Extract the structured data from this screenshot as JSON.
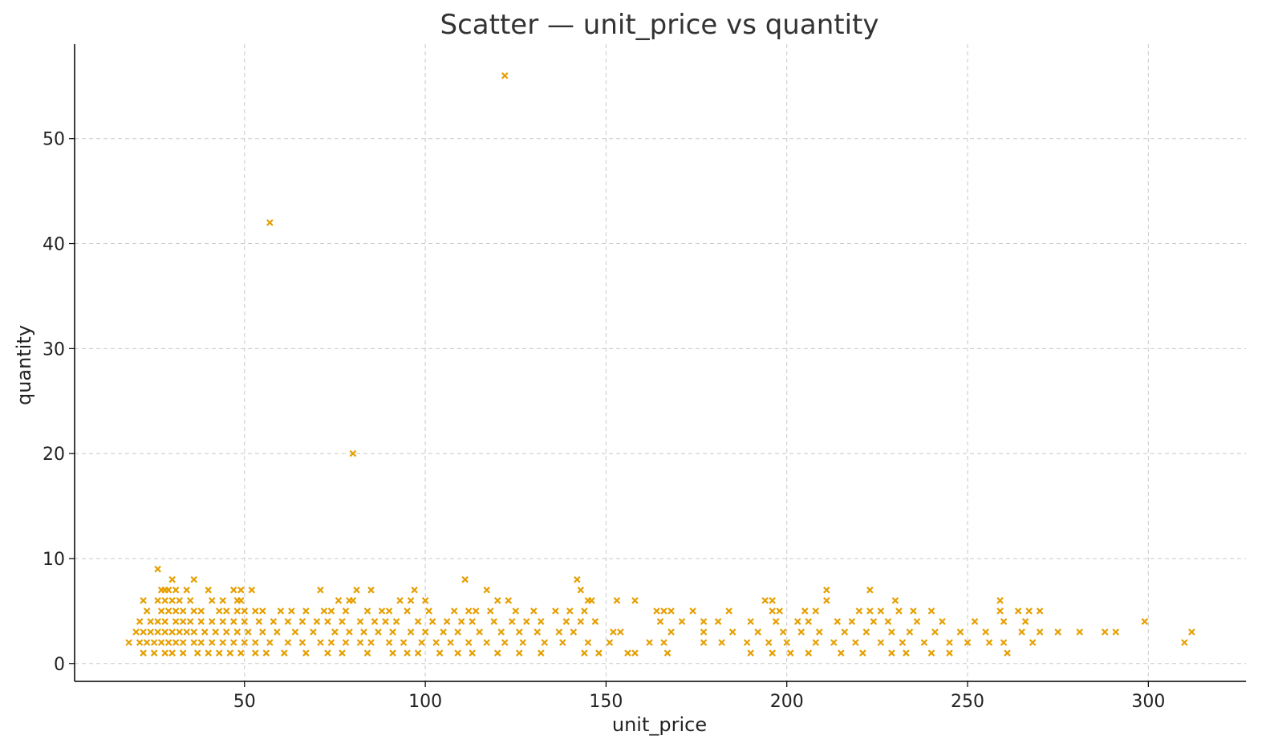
{
  "chart_data": {
    "type": "scatter",
    "title": "Scatter — unit_price vs quantity",
    "xlabel": "unit_price",
    "ylabel": "quantity",
    "xlim": [
      3,
      327
    ],
    "ylim": [
      -1.7,
      59
    ],
    "xticks": [
      50,
      100,
      150,
      200,
      250,
      300
    ],
    "yticks": [
      0,
      10,
      20,
      30,
      40,
      50
    ],
    "grid": true,
    "marker": "x",
    "color": "#E69F00",
    "points": [
      [
        122,
        56
      ],
      [
        57,
        42
      ],
      [
        80,
        20
      ],
      [
        26,
        9
      ],
      [
        30,
        8
      ],
      [
        36,
        8
      ],
      [
        111,
        8
      ],
      [
        142,
        8
      ],
      [
        27,
        7
      ],
      [
        28,
        7
      ],
      [
        29,
        7
      ],
      [
        31,
        7
      ],
      [
        34,
        7
      ],
      [
        40,
        7
      ],
      [
        47,
        7
      ],
      [
        49,
        7
      ],
      [
        52,
        7
      ],
      [
        71,
        7
      ],
      [
        81,
        7
      ],
      [
        85,
        7
      ],
      [
        97,
        7
      ],
      [
        117,
        7
      ],
      [
        143,
        7
      ],
      [
        211,
        7
      ],
      [
        223,
        7
      ],
      [
        22,
        6
      ],
      [
        26,
        6
      ],
      [
        28,
        6
      ],
      [
        30,
        6
      ],
      [
        32,
        6
      ],
      [
        35,
        6
      ],
      [
        41,
        6
      ],
      [
        44,
        6
      ],
      [
        48,
        6
      ],
      [
        49,
        6
      ],
      [
        76,
        6
      ],
      [
        79,
        6
      ],
      [
        80,
        6
      ],
      [
        93,
        6
      ],
      [
        96,
        6
      ],
      [
        100,
        6
      ],
      [
        120,
        6
      ],
      [
        123,
        6
      ],
      [
        145,
        6
      ],
      [
        146,
        6
      ],
      [
        153,
        6
      ],
      [
        158,
        6
      ],
      [
        194,
        6
      ],
      [
        196,
        6
      ],
      [
        211,
        6
      ],
      [
        230,
        6
      ],
      [
        259,
        6
      ],
      [
        23,
        5
      ],
      [
        27,
        5
      ],
      [
        29,
        5
      ],
      [
        31,
        5
      ],
      [
        33,
        5
      ],
      [
        36,
        5
      ],
      [
        38,
        5
      ],
      [
        43,
        5
      ],
      [
        45,
        5
      ],
      [
        48,
        5
      ],
      [
        50,
        5
      ],
      [
        53,
        5
      ],
      [
        55,
        5
      ],
      [
        60,
        5
      ],
      [
        63,
        5
      ],
      [
        67,
        5
      ],
      [
        72,
        5
      ],
      [
        74,
        5
      ],
      [
        78,
        5
      ],
      [
        84,
        5
      ],
      [
        88,
        5
      ],
      [
        90,
        5
      ],
      [
        95,
        5
      ],
      [
        101,
        5
      ],
      [
        108,
        5
      ],
      [
        112,
        5
      ],
      [
        114,
        5
      ],
      [
        118,
        5
      ],
      [
        125,
        5
      ],
      [
        130,
        5
      ],
      [
        136,
        5
      ],
      [
        140,
        5
      ],
      [
        144,
        5
      ],
      [
        164,
        5
      ],
      [
        166,
        5
      ],
      [
        168,
        5
      ],
      [
        174,
        5
      ],
      [
        184,
        5
      ],
      [
        196,
        5
      ],
      [
        198,
        5
      ],
      [
        205,
        5
      ],
      [
        208,
        5
      ],
      [
        220,
        5
      ],
      [
        223,
        5
      ],
      [
        226,
        5
      ],
      [
        231,
        5
      ],
      [
        235,
        5
      ],
      [
        240,
        5
      ],
      [
        259,
        5
      ],
      [
        264,
        5
      ],
      [
        267,
        5
      ],
      [
        270,
        5
      ],
      [
        21,
        4
      ],
      [
        24,
        4
      ],
      [
        26,
        4
      ],
      [
        28,
        4
      ],
      [
        31,
        4
      ],
      [
        33,
        4
      ],
      [
        35,
        4
      ],
      [
        38,
        4
      ],
      [
        41,
        4
      ],
      [
        44,
        4
      ],
      [
        47,
        4
      ],
      [
        50,
        4
      ],
      [
        54,
        4
      ],
      [
        58,
        4
      ],
      [
        62,
        4
      ],
      [
        66,
        4
      ],
      [
        70,
        4
      ],
      [
        73,
        4
      ],
      [
        77,
        4
      ],
      [
        82,
        4
      ],
      [
        86,
        4
      ],
      [
        89,
        4
      ],
      [
        92,
        4
      ],
      [
        98,
        4
      ],
      [
        102,
        4
      ],
      [
        106,
        4
      ],
      [
        110,
        4
      ],
      [
        113,
        4
      ],
      [
        119,
        4
      ],
      [
        124,
        4
      ],
      [
        128,
        4
      ],
      [
        132,
        4
      ],
      [
        139,
        4
      ],
      [
        143,
        4
      ],
      [
        147,
        4
      ],
      [
        165,
        4
      ],
      [
        171,
        4
      ],
      [
        177,
        4
      ],
      [
        181,
        4
      ],
      [
        190,
        4
      ],
      [
        197,
        4
      ],
      [
        203,
        4
      ],
      [
        206,
        4
      ],
      [
        214,
        4
      ],
      [
        218,
        4
      ],
      [
        224,
        4
      ],
      [
        228,
        4
      ],
      [
        236,
        4
      ],
      [
        243,
        4
      ],
      [
        252,
        4
      ],
      [
        260,
        4
      ],
      [
        266,
        4
      ],
      [
        299,
        4
      ],
      [
        20,
        3
      ],
      [
        22,
        3
      ],
      [
        24,
        3
      ],
      [
        26,
        3
      ],
      [
        28,
        3
      ],
      [
        30,
        3
      ],
      [
        32,
        3
      ],
      [
        34,
        3
      ],
      [
        36,
        3
      ],
      [
        39,
        3
      ],
      [
        42,
        3
      ],
      [
        45,
        3
      ],
      [
        48,
        3
      ],
      [
        51,
        3
      ],
      [
        55,
        3
      ],
      [
        59,
        3
      ],
      [
        64,
        3
      ],
      [
        69,
        3
      ],
      [
        75,
        3
      ],
      [
        79,
        3
      ],
      [
        83,
        3
      ],
      [
        87,
        3
      ],
      [
        91,
        3
      ],
      [
        96,
        3
      ],
      [
        100,
        3
      ],
      [
        105,
        3
      ],
      [
        109,
        3
      ],
      [
        115,
        3
      ],
      [
        121,
        3
      ],
      [
        126,
        3
      ],
      [
        131,
        3
      ],
      [
        137,
        3
      ],
      [
        141,
        3
      ],
      [
        152,
        3
      ],
      [
        154,
        3
      ],
      [
        168,
        3
      ],
      [
        177,
        3
      ],
      [
        185,
        3
      ],
      [
        192,
        3
      ],
      [
        199,
        3
      ],
      [
        204,
        3
      ],
      [
        209,
        3
      ],
      [
        216,
        3
      ],
      [
        222,
        3
      ],
      [
        229,
        3
      ],
      [
        234,
        3
      ],
      [
        241,
        3
      ],
      [
        248,
        3
      ],
      [
        255,
        3
      ],
      [
        265,
        3
      ],
      [
        270,
        3
      ],
      [
        275,
        3
      ],
      [
        281,
        3
      ],
      [
        288,
        3
      ],
      [
        291,
        3
      ],
      [
        312,
        3
      ],
      [
        18,
        2
      ],
      [
        21,
        2
      ],
      [
        23,
        2
      ],
      [
        25,
        2
      ],
      [
        27,
        2
      ],
      [
        29,
        2
      ],
      [
        31,
        2
      ],
      [
        33,
        2
      ],
      [
        36,
        2
      ],
      [
        38,
        2
      ],
      [
        41,
        2
      ],
      [
        44,
        2
      ],
      [
        47,
        2
      ],
      [
        50,
        2
      ],
      [
        53,
        2
      ],
      [
        57,
        2
      ],
      [
        62,
        2
      ],
      [
        66,
        2
      ],
      [
        71,
        2
      ],
      [
        74,
        2
      ],
      [
        78,
        2
      ],
      [
        82,
        2
      ],
      [
        85,
        2
      ],
      [
        90,
        2
      ],
      [
        94,
        2
      ],
      [
        99,
        2
      ],
      [
        103,
        2
      ],
      [
        107,
        2
      ],
      [
        112,
        2
      ],
      [
        117,
        2
      ],
      [
        122,
        2
      ],
      [
        127,
        2
      ],
      [
        133,
        2
      ],
      [
        138,
        2
      ],
      [
        145,
        2
      ],
      [
        151,
        2
      ],
      [
        162,
        2
      ],
      [
        166,
        2
      ],
      [
        177,
        2
      ],
      [
        182,
        2
      ],
      [
        189,
        2
      ],
      [
        195,
        2
      ],
      [
        200,
        2
      ],
      [
        208,
        2
      ],
      [
        213,
        2
      ],
      [
        219,
        2
      ],
      [
        226,
        2
      ],
      [
        232,
        2
      ],
      [
        238,
        2
      ],
      [
        245,
        2
      ],
      [
        250,
        2
      ],
      [
        256,
        2
      ],
      [
        260,
        2
      ],
      [
        268,
        2
      ],
      [
        310,
        2
      ],
      [
        22,
        1
      ],
      [
        25,
        1
      ],
      [
        28,
        1
      ],
      [
        30,
        1
      ],
      [
        33,
        1
      ],
      [
        37,
        1
      ],
      [
        40,
        1
      ],
      [
        43,
        1
      ],
      [
        46,
        1
      ],
      [
        49,
        1
      ],
      [
        53,
        1
      ],
      [
        56,
        1
      ],
      [
        61,
        1
      ],
      [
        67,
        1
      ],
      [
        73,
        1
      ],
      [
        77,
        1
      ],
      [
        84,
        1
      ],
      [
        91,
        1
      ],
      [
        95,
        1
      ],
      [
        98,
        1
      ],
      [
        104,
        1
      ],
      [
        109,
        1
      ],
      [
        113,
        1
      ],
      [
        120,
        1
      ],
      [
        126,
        1
      ],
      [
        132,
        1
      ],
      [
        144,
        1
      ],
      [
        148,
        1
      ],
      [
        156,
        1
      ],
      [
        158,
        1
      ],
      [
        167,
        1
      ],
      [
        190,
        1
      ],
      [
        196,
        1
      ],
      [
        201,
        1
      ],
      [
        206,
        1
      ],
      [
        215,
        1
      ],
      [
        221,
        1
      ],
      [
        229,
        1
      ],
      [
        233,
        1
      ],
      [
        240,
        1
      ],
      [
        245,
        1
      ],
      [
        261,
        1
      ]
    ]
  }
}
